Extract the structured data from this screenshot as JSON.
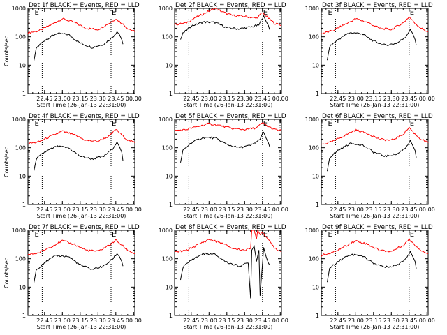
{
  "chart_data": [
    {
      "type": "line",
      "title": "Det 1f BLACK = Events, RED = LLD",
      "ylabel": "Counts/sec",
      "xlabel": "Start Time (26-Jan-13 22:31:00)",
      "yscale": "log",
      "ylim": [
        1,
        1000
      ],
      "yticks": [
        "1",
        "10",
        "100",
        "1000"
      ],
      "xticks": [
        "22:45",
        "23:00",
        "23:15",
        "23:30",
        "23:45",
        "00:00"
      ],
      "markers": [
        "E",
        "E"
      ],
      "marker_times": [
        "22:36",
        "23:41"
      ],
      "vlines": [
        "22:43",
        "23:41"
      ],
      "series": [
        {
          "color": "#ff0000",
          "x": [
            "22:31",
            "22:40",
            "22:50",
            "23:00",
            "23:10",
            "23:20",
            "23:30",
            "23:40",
            "23:45",
            "23:50",
            "23:55",
            "24:01"
          ],
          "y": [
            140,
            160,
            260,
            430,
            320,
            200,
            180,
            310,
            430,
            300,
            200,
            150
          ]
        },
        {
          "color": "#000000",
          "x": [
            "22:36",
            "22:38",
            "22:45",
            "22:55",
            "23:05",
            "23:15",
            "23:25",
            "23:35",
            "23:42",
            "23:46",
            "23:48",
            "23:50",
            "23:51"
          ],
          "y": [
            14,
            40,
            75,
            130,
            120,
            60,
            42,
            55,
            95,
            150,
            120,
            80,
            55
          ]
        }
      ]
    },
    {
      "type": "line",
      "title": "Det 2f BLACK = Events, RED = LLD",
      "ylabel": "",
      "xlabel": "Start Time (26-Jan-13 22:31:00)",
      "yscale": "log",
      "ylim": [
        1,
        1000
      ],
      "yticks": [
        "1",
        "10",
        "100",
        "1000"
      ],
      "xticks": [
        "22:45",
        "23:00",
        "23:15",
        "23:30",
        "23:45",
        "00:00"
      ],
      "markers": [
        "E"
      ],
      "marker_times": [
        "23:45"
      ],
      "vlines": [
        "22:43",
        "23:45"
      ],
      "series": [
        {
          "color": "#ff0000",
          "x": [
            "22:31",
            "22:40",
            "22:50",
            "23:00",
            "23:05",
            "23:10",
            "23:15",
            "23:20",
            "23:30",
            "23:40",
            "23:45",
            "23:50",
            "23:55",
            "24:01"
          ],
          "y": [
            270,
            300,
            500,
            800,
            1000,
            800,
            650,
            560,
            520,
            450,
            700,
            450,
            300,
            260
          ]
        },
        {
          "color": "#000000",
          "x": [
            "22:36",
            "22:38",
            "22:45",
            "22:55",
            "23:05",
            "23:15",
            "23:25",
            "23:35",
            "23:42",
            "23:46",
            "23:48",
            "23:50",
            "23:51"
          ],
          "y": [
            80,
            130,
            240,
            330,
            320,
            210,
            190,
            220,
            260,
            550,
            350,
            250,
            180
          ]
        }
      ]
    },
    {
      "type": "line",
      "title": "Det 3f BLACK = Events, RED = LLD",
      "ylabel": "",
      "xlabel": "Start Time (26-Jan-13 22:31:00)",
      "yscale": "log",
      "ylim": [
        1,
        1000
      ],
      "yticks": [
        "1",
        "10",
        "100",
        "1000"
      ],
      "xticks": [
        "22:45",
        "23:00",
        "23:15",
        "23:30",
        "23:45",
        "00:00"
      ],
      "markers": [
        "E",
        "E"
      ],
      "marker_times": [
        "22:36",
        "23:45"
      ],
      "vlines": [
        "22:43",
        "23:45"
      ],
      "series": [
        {
          "color": "#ff0000",
          "x": [
            "22:31",
            "22:40",
            "22:50",
            "23:00",
            "23:10",
            "23:20",
            "23:30",
            "23:40",
            "23:45",
            "23:50",
            "23:55",
            "24:01"
          ],
          "y": [
            130,
            160,
            260,
            430,
            320,
            200,
            180,
            310,
            500,
            300,
            200,
            150
          ]
        },
        {
          "color": "#000000",
          "x": [
            "22:36",
            "22:38",
            "22:45",
            "22:55",
            "23:05",
            "23:15",
            "23:25",
            "23:35",
            "23:42",
            "23:46",
            "23:48",
            "23:50",
            "23:51"
          ],
          "y": [
            15,
            45,
            80,
            140,
            130,
            70,
            50,
            60,
            100,
            180,
            130,
            80,
            50
          ]
        }
      ]
    },
    {
      "type": "line",
      "title": "Det 4f BLACK = Events, RED = LLD",
      "ylabel": "Counts/sec",
      "xlabel": "Start Time (26-Jan-13 22:31:00)",
      "yscale": "log",
      "ylim": [
        1,
        1000
      ],
      "yticks": [
        "1",
        "10",
        "100",
        "1000"
      ],
      "xticks": [
        "22:45",
        "23:00",
        "23:15",
        "23:30",
        "23:45",
        "00:00"
      ],
      "markers": [
        "E",
        "E"
      ],
      "marker_times": [
        "22:36",
        "23:41"
      ],
      "vlines": [
        "22:43",
        "23:41"
      ],
      "series": [
        {
          "color": "#ff0000",
          "x": [
            "22:31",
            "22:40",
            "22:50",
            "23:00",
            "23:10",
            "23:20",
            "23:30",
            "23:40",
            "23:45",
            "23:50",
            "23:55",
            "24:01"
          ],
          "y": [
            140,
            160,
            250,
            380,
            280,
            180,
            170,
            260,
            450,
            280,
            190,
            150
          ]
        },
        {
          "color": "#000000",
          "x": [
            "22:36",
            "22:38",
            "22:45",
            "22:55",
            "23:05",
            "23:15",
            "23:25",
            "23:35",
            "23:42",
            "23:46",
            "23:48",
            "23:50",
            "23:51"
          ],
          "y": [
            15,
            40,
            70,
            110,
            100,
            50,
            40,
            50,
            90,
            160,
            110,
            70,
            35
          ]
        }
      ]
    },
    {
      "type": "line",
      "title": "Det 5f BLACK = Events, RED = LLD",
      "ylabel": "",
      "xlabel": "Start Time (26-Jan-13 22:31:00)",
      "yscale": "log",
      "ylim": [
        1,
        1000
      ],
      "yticks": [
        "1",
        "10",
        "100",
        "1000"
      ],
      "xticks": [
        "22:45",
        "23:00",
        "23:15",
        "23:30",
        "23:45",
        "00:00"
      ],
      "markers": [
        "E"
      ],
      "marker_times": [
        "23:45"
      ],
      "vlines": [
        "22:43",
        "23:45"
      ],
      "series": [
        {
          "color": "#ff0000",
          "x": [
            "22:31",
            "22:40",
            "22:50",
            "23:00",
            "23:10",
            "23:20",
            "23:30",
            "23:40",
            "23:45",
            "23:50",
            "23:55",
            "24:01"
          ],
          "y": [
            400,
            430,
            550,
            700,
            600,
            470,
            440,
            500,
            750,
            550,
            440,
            400
          ]
        },
        {
          "color": "#000000",
          "x": [
            "22:36",
            "22:38",
            "22:45",
            "22:55",
            "23:05",
            "23:15",
            "23:25",
            "23:35",
            "23:42",
            "23:46",
            "23:48",
            "23:50",
            "23:51"
          ],
          "y": [
            30,
            80,
            150,
            230,
            220,
            130,
            100,
            120,
            180,
            350,
            220,
            150,
            110
          ]
        }
      ]
    },
    {
      "type": "line",
      "title": "Det 6f BLACK = Events, RED = LLD",
      "ylabel": "",
      "xlabel": "Start Time (26-Jan-13 22:31:00)",
      "yscale": "log",
      "ylim": [
        1,
        1000
      ],
      "yticks": [
        "1",
        "10",
        "100",
        "1000"
      ],
      "xticks": [
        "22:45",
        "23:00",
        "23:15",
        "23:30",
        "23:45",
        "00:00"
      ],
      "markers": [
        "E",
        "E"
      ],
      "marker_times": [
        "22:36",
        "23:45"
      ],
      "vlines": [
        "22:43",
        "23:45"
      ],
      "series": [
        {
          "color": "#ff0000",
          "x": [
            "22:31",
            "22:40",
            "22:50",
            "23:00",
            "23:10",
            "23:20",
            "23:30",
            "23:40",
            "23:45",
            "23:50",
            "23:55",
            "24:01"
          ],
          "y": [
            130,
            160,
            260,
            430,
            320,
            200,
            180,
            300,
            520,
            300,
            200,
            150
          ]
        },
        {
          "color": "#000000",
          "x": [
            "22:36",
            "22:38",
            "22:45",
            "22:55",
            "23:05",
            "23:15",
            "23:25",
            "23:35",
            "23:42",
            "23:46",
            "23:48",
            "23:50",
            "23:51"
          ],
          "y": [
            15,
            45,
            80,
            140,
            130,
            70,
            50,
            60,
            100,
            180,
            120,
            80,
            45
          ]
        }
      ]
    },
    {
      "type": "line",
      "title": "Det 7f BLACK = Events, RED = LLD",
      "ylabel": "Counts/sec",
      "xlabel": "Start Time (26-Jan-13 22:31:00)",
      "yscale": "log",
      "ylim": [
        1,
        1000
      ],
      "yticks": [
        "1",
        "10",
        "100",
        "1000"
      ],
      "xticks": [
        "22:45",
        "23:00",
        "23:15",
        "23:30",
        "23:45",
        "00:00"
      ],
      "markers": [
        "E",
        "E"
      ],
      "marker_times": [
        "22:36",
        "23:41"
      ],
      "vlines": [
        "22:43",
        "23:41"
      ],
      "series": [
        {
          "color": "#ff0000",
          "x": [
            "22:31",
            "22:40",
            "22:50",
            "23:00",
            "23:10",
            "23:20",
            "23:30",
            "23:40",
            "23:45",
            "23:50",
            "23:55",
            "24:01"
          ],
          "y": [
            140,
            160,
            260,
            430,
            320,
            200,
            180,
            310,
            450,
            300,
            200,
            150
          ]
        },
        {
          "color": "#000000",
          "x": [
            "22:36",
            "22:38",
            "22:45",
            "22:55",
            "23:05",
            "23:15",
            "23:25",
            "23:35",
            "23:42",
            "23:46",
            "23:48",
            "23:50",
            "23:51"
          ],
          "y": [
            14,
            40,
            75,
            130,
            120,
            60,
            42,
            55,
            95,
            150,
            120,
            80,
            55
          ]
        }
      ]
    },
    {
      "type": "line",
      "title": "Det 8f BLACK = Events, RED = LLD",
      "ylabel": "",
      "xlabel": "Start Time (26-Jan-13 22:31:00)",
      "yscale": "log",
      "ylim": [
        1,
        1000
      ],
      "yticks": [
        "1",
        "10",
        "100",
        "1000"
      ],
      "xticks": [
        "22:45",
        "23:00",
        "23:15",
        "23:30",
        "23:45",
        "00:00"
      ],
      "markers": [
        "E"
      ],
      "marker_times": [
        "23:45"
      ],
      "vlines": [
        "22:43",
        "23:45"
      ],
      "series": [
        {
          "color": "#ff0000",
          "x": [
            "22:31",
            "22:40",
            "22:50",
            "23:00",
            "23:10",
            "23:20",
            "23:30",
            "23:35",
            "23:36",
            "23:38",
            "23:40",
            "23:41",
            "23:43",
            "23:45",
            "23:50",
            "23:55",
            "24:01"
          ],
          "y": [
            170,
            190,
            300,
            480,
            360,
            230,
            200,
            230,
            1000,
            1000,
            500,
            1000,
            700,
            900,
            450,
            250,
            170
          ]
        },
        {
          "color": "#000000",
          "x": [
            "22:36",
            "22:38",
            "22:45",
            "22:55",
            "23:05",
            "23:15",
            "23:25",
            "23:33",
            "23:35",
            "23:36",
            "23:38",
            "23:40",
            "23:42",
            "23:43",
            "23:46",
            "23:48",
            "23:51"
          ],
          "y": [
            18,
            50,
            90,
            150,
            140,
            75,
            55,
            70,
            4,
            200,
            280,
            80,
            200,
            5,
            250,
            120,
            60
          ]
        }
      ]
    },
    {
      "type": "line",
      "title": "Det 9f BLACK = Events, RED = LLD",
      "ylabel": "",
      "xlabel": "Start Time (26-Jan-13 22:31:00)",
      "yscale": "log",
      "ylim": [
        1,
        1000
      ],
      "yticks": [
        "1",
        "10",
        "100",
        "1000"
      ],
      "xticks": [
        "22:45",
        "23:00",
        "23:15",
        "23:30",
        "23:45",
        "00:00"
      ],
      "markers": [
        "E",
        "E"
      ],
      "marker_times": [
        "22:36",
        "23:45"
      ],
      "vlines": [
        "22:43",
        "23:45"
      ],
      "series": [
        {
          "color": "#ff0000",
          "x": [
            "22:31",
            "22:40",
            "22:50",
            "23:00",
            "23:10",
            "23:20",
            "23:30",
            "23:40",
            "23:45",
            "23:50",
            "23:55",
            "24:01"
          ],
          "y": [
            130,
            160,
            260,
            430,
            320,
            200,
            180,
            300,
            480,
            300,
            200,
            150
          ]
        },
        {
          "color": "#000000",
          "x": [
            "22:36",
            "22:38",
            "22:45",
            "22:55",
            "23:05",
            "23:15",
            "23:25",
            "23:35",
            "23:42",
            "23:46",
            "23:48",
            "23:50",
            "23:51"
          ],
          "y": [
            15,
            45,
            80,
            140,
            130,
            70,
            50,
            60,
            100,
            180,
            120,
            80,
            45
          ]
        }
      ]
    }
  ]
}
